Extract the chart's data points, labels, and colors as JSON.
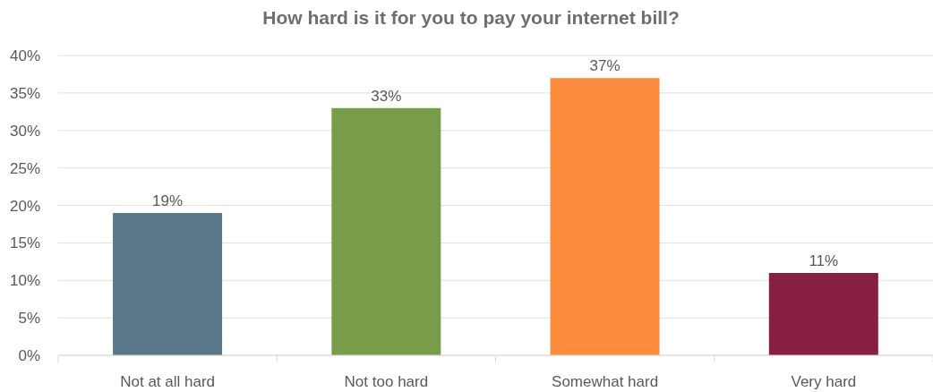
{
  "chart_data": {
    "type": "bar",
    "title": "How hard is it for you to pay your internet bill?",
    "categories": [
      "Not at all hard",
      "Not too hard",
      "Somewhat hard",
      "Very hard"
    ],
    "values": [
      19,
      33,
      37,
      11
    ],
    "colors": [
      "#5a7889",
      "#789d4a",
      "#fb8c3e",
      "#861f40"
    ],
    "value_labels": [
      "19%",
      "33%",
      "37%",
      "11%"
    ],
    "ylim": [
      0,
      40
    ],
    "yticks": [
      {
        "value": 0,
        "label": "0%"
      },
      {
        "value": 5,
        "label": "5%"
      },
      {
        "value": 10,
        "label": "10%"
      },
      {
        "value": 15,
        "label": "15%"
      },
      {
        "value": 20,
        "label": "20%"
      },
      {
        "value": 25,
        "label": "25%"
      },
      {
        "value": 30,
        "label": "30%"
      },
      {
        "value": 35,
        "label": "35%"
      },
      {
        "value": 40,
        "label": "40%"
      }
    ],
    "grid": "y"
  }
}
